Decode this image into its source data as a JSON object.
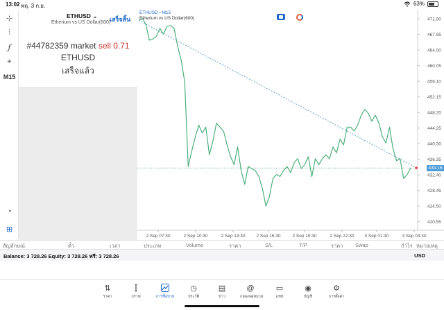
{
  "status": {
    "time": "13:02",
    "date": "พฤ. 3 ก.ย.",
    "battery": "63%",
    "battery_level": 0.63,
    "icons": [
      "wifi-icon",
      "battery-icon"
    ]
  },
  "left_tools": [
    {
      "icon": "crosshair-icon",
      "glyph": "⊹"
    },
    {
      "icon": "candles-icon",
      "glyph": "⫶"
    },
    {
      "icon": "indicator-icon",
      "glyph": "ƒ"
    },
    {
      "icon": "shapes-icon",
      "glyph": "⌖"
    },
    {
      "label": "M15"
    }
  ],
  "left_tools_bottom": [
    {
      "icon": "speedometer-icon",
      "glyph": "◔"
    },
    {
      "icon": "add-box-icon",
      "glyph": "⊞"
    }
  ],
  "trade_panel": {
    "symbol": "ETHUSD",
    "symbol_desc": "Etherium vs US Dollar(600)",
    "done_label": "เสร็จสิ้น",
    "order_number": "#44782359 market",
    "order_side": "sell 0.71",
    "order_symbol": "ETHUSD",
    "order_status": "เสร็จแล้ว"
  },
  "chart": {
    "title": "ETHUSD • M15",
    "subtitle": "Etherium vs US Dollar(600)",
    "current_price": "434.16",
    "colors": {
      "line": "#4caf7d",
      "trend": "#3d86c9",
      "price_line": "#2e8b57",
      "marker": "#e53935"
    }
  },
  "chart_data": {
    "type": "line",
    "series": [
      {
        "values": [
          471.5,
          472.0,
          470.5,
          466.5,
          466.8,
          467.5,
          469.5,
          468.0,
          470.0,
          470.2,
          469.5,
          465.0,
          461.5,
          456.0,
          434.5,
          438.5,
          442.0,
          445.0,
          443.0,
          444.5,
          437.5,
          441.0,
          445.5,
          444.5,
          443.5,
          440.0,
          437.0,
          435.0,
          439.5,
          433.5,
          430.0,
          434.5,
          434.0,
          433.5,
          432.0,
          429.0,
          424.5,
          427.0,
          431.5,
          432.5,
          432.0,
          433.5,
          434.5,
          433.0,
          435.5,
          436.5,
          434.0,
          435.0,
          437.0,
          432.0,
          436.5,
          435.0,
          436.5,
          437.5,
          436.5,
          439.5,
          438.0,
          441.5,
          440.0,
          444.5,
          444.5,
          443.5,
          445.0,
          447.5,
          449.0,
          448.0,
          446.0,
          447.5,
          445.5,
          442.0,
          440.5,
          444.5,
          439.0,
          436.0,
          436.5,
          431.5,
          432.5,
          434.2
        ]
      },
      {
        "values": [
          471.5,
          434.2
        ]
      }
    ],
    "ylim": [
      418.4,
      474.2
    ],
    "y_ticks": [
      "471.90",
      "467.95",
      "464.00",
      "460.05",
      "456.10",
      "452.15",
      "448.20",
      "444.25",
      "440.30",
      "436.35",
      "432.40",
      "428.45",
      "424.50",
      "420.55"
    ],
    "x_ticks": [
      "2 Sep 07:30",
      "2 Sep 10:30",
      "2 Sep 13:30",
      "2 Sep 16:30",
      "2 Sep 19:30",
      "2 Sep 22:30",
      "3 Sep 01:30",
      "3 Sep 04:30"
    ],
    "current_price": 434.16,
    "grid": false,
    "legend": "none"
  },
  "tabs": [
    {
      "label": "สัญลักษณ์"
    },
    {
      "label": "ตั๋ว"
    },
    {
      "label": "เวลา"
    },
    {
      "label": "ประเภท"
    },
    {
      "label": "Volume"
    },
    {
      "label": "ราคา"
    },
    {
      "label": "S/L"
    },
    {
      "label": "T/P"
    },
    {
      "label": "ราคา"
    },
    {
      "label": "Swap"
    },
    {
      "label": "กำไร"
    },
    {
      "label": "หมายเหตุ"
    }
  ],
  "balance": {
    "text": "Balance: 3 728.26 Equity: 3 728.26 ฟรี: 3 728.26",
    "currency": "USD"
  },
  "nav": [
    {
      "label": "ราคา",
      "icon": "quotes-icon",
      "glyph": "⇅"
    },
    {
      "label": "กราฟ",
      "icon": "chart-candles-icon",
      "glyph": "⫿"
    },
    {
      "label": "การซื้อขาย",
      "icon": "trade-icon",
      "glyph": "⧉",
      "active": true
    },
    {
      "label": "ประวัติ",
      "icon": "history-icon",
      "glyph": "◷"
    },
    {
      "label": "ข่าว",
      "icon": "news-icon",
      "glyph": "▤"
    },
    {
      "label": "กล่องจดหมาย",
      "icon": "mailbox-icon",
      "glyph": "@"
    },
    {
      "label": "แชท",
      "icon": "chat-icon",
      "glyph": "▭"
    },
    {
      "label": "บัญชี",
      "icon": "account-icon",
      "glyph": "◉"
    },
    {
      "label": "การตั้งค่า",
      "icon": "settings-icon",
      "glyph": "⚙"
    }
  ]
}
